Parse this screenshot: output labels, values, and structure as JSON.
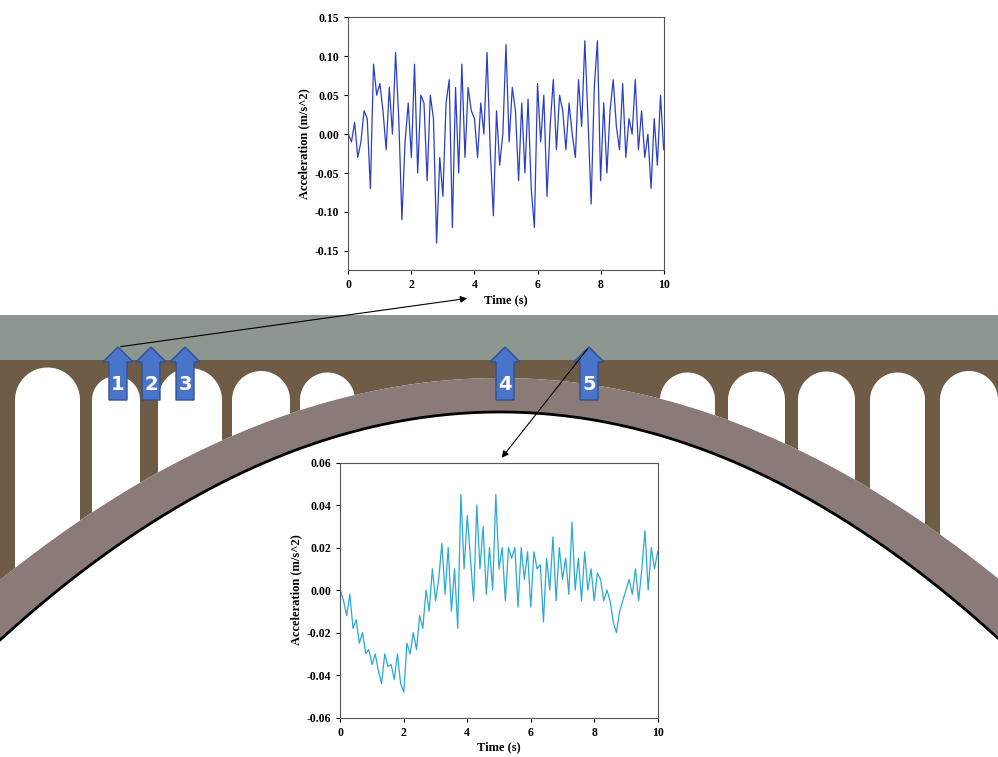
{
  "diagram": {
    "sensors": [
      "1",
      "2",
      "3",
      "4",
      "5"
    ],
    "charts_at_sensors": [
      "1",
      "5"
    ]
  },
  "chart_data": [
    {
      "type": "line",
      "x_label": "Time (s)",
      "y_label": "Acceleration (m/s^2)",
      "color": "#2a3fc6",
      "x": [
        0,
        0.1,
        0.2,
        0.3,
        0.4,
        0.5,
        0.6,
        0.7,
        0.8,
        0.9,
        1,
        1.1,
        1.2,
        1.3,
        1.4,
        1.5,
        1.6,
        1.7,
        1.8,
        1.9,
        2,
        2.1,
        2.2,
        2.3,
        2.4,
        2.5,
        2.6,
        2.7,
        2.8,
        2.9,
        3,
        3.1,
        3.2,
        3.3,
        3.4,
        3.5,
        3.6,
        3.7,
        3.8,
        3.9,
        4,
        4.1,
        4.2,
        4.3,
        4.4,
        4.5,
        4.6,
        4.7,
        4.8,
        4.9,
        5,
        5.1,
        5.2,
        5.3,
        5.4,
        5.5,
        5.6,
        5.7,
        5.8,
        5.9,
        6,
        6.1,
        6.2,
        6.3,
        6.4,
        6.5,
        6.6,
        6.7,
        6.8,
        6.9,
        7,
        7.1,
        7.2,
        7.3,
        7.4,
        7.5,
        7.6,
        7.7,
        7.8,
        7.9,
        8,
        8.1,
        8.2,
        8.3,
        8.4,
        8.5,
        8.6,
        8.7,
        8.8,
        8.9,
        9,
        9.1,
        9.2,
        9.3,
        9.4,
        9.5,
        9.6,
        9.7,
        9.8,
        9.9,
        10
      ],
      "values": [
        0.0,
        -0.01,
        0.015,
        -0.03,
        -0.01,
        0.03,
        0.02,
        -0.07,
        0.09,
        0.05,
        0.065,
        0.03,
        -0.02,
        0.06,
        0.0,
        0.105,
        0.02,
        -0.11,
        -0.01,
        0.04,
        -0.03,
        0.09,
        -0.05,
        0.05,
        0.04,
        -0.06,
        0.05,
        0.02,
        -0.14,
        -0.03,
        -0.08,
        0.04,
        0.07,
        -0.12,
        0.06,
        -0.05,
        0.09,
        -0.03,
        0.06,
        0.03,
        0.02,
        -0.03,
        0.04,
        0.0,
        0.105,
        -0.02,
        -0.105,
        0.03,
        -0.04,
        0.0,
        0.115,
        -0.01,
        0.06,
        0.03,
        -0.06,
        0.04,
        -0.05,
        0.045,
        -0.07,
        -0.12,
        0.065,
        -0.01,
        0.05,
        -0.08,
        0.01,
        0.07,
        -0.02,
        0.05,
        0.03,
        -0.02,
        0.04,
        0.0,
        -0.03,
        0.07,
        0.01,
        0.12,
        0.02,
        -0.09,
        0.06,
        0.12,
        -0.06,
        0.04,
        -0.05,
        0.03,
        0.07,
        0.01,
        -0.02,
        0.065,
        -0.03,
        0.02,
        0.0,
        0.07,
        -0.02,
        0.03,
        -0.03,
        0.0,
        -0.07,
        0.02,
        -0.04,
        0.05,
        -0.02
      ],
      "xlim": [
        0,
        10
      ],
      "xticks": [
        0,
        2,
        4,
        6,
        8,
        10
      ],
      "ylim": [
        -0.175,
        0.15
      ],
      "yticks": [
        -0.15,
        {
          "value": -0.1,
          "label": "-0.10"
        },
        -0.05,
        {
          "value": 0,
          "label": "0.00"
        },
        0.05,
        {
          "value": 0.1,
          "label": "0.10"
        },
        0.15
      ],
      "grid": false
    },
    {
      "type": "line",
      "x_label": "Time (s)",
      "y_label": "Acceleration (m/s^2)",
      "color": "#29a9d6",
      "x": [
        0,
        0.1,
        0.2,
        0.3,
        0.4,
        0.5,
        0.6,
        0.7,
        0.8,
        0.9,
        1,
        1.1,
        1.2,
        1.3,
        1.4,
        1.5,
        1.6,
        1.7,
        1.8,
        1.9,
        2,
        2.1,
        2.2,
        2.3,
        2.4,
        2.5,
        2.6,
        2.7,
        2.8,
        2.9,
        3,
        3.1,
        3.2,
        3.3,
        3.4,
        3.5,
        3.6,
        3.7,
        3.8,
        3.9,
        4,
        4.1,
        4.2,
        4.3,
        4.4,
        4.5,
        4.6,
        4.7,
        4.8,
        4.9,
        5,
        5.1,
        5.2,
        5.3,
        5.4,
        5.5,
        5.6,
        5.7,
        5.8,
        5.9,
        6,
        6.1,
        6.2,
        6.3,
        6.4,
        6.5,
        6.6,
        6.7,
        6.8,
        6.9,
        7,
        7.1,
        7.2,
        7.3,
        7.4,
        7.5,
        7.6,
        7.7,
        7.8,
        7.9,
        8,
        8.1,
        8.2,
        8.3,
        8.4,
        8.5,
        8.6,
        8.7,
        8.8,
        8.9,
        9,
        9.1,
        9.2,
        9.3,
        9.4,
        9.5,
        9.6,
        9.7,
        9.8,
        9.9,
        10
      ],
      "values": [
        0.0,
        -0.005,
        -0.012,
        -0.002,
        -0.018,
        -0.014,
        -0.025,
        -0.02,
        -0.03,
        -0.028,
        -0.035,
        -0.03,
        -0.038,
        -0.044,
        -0.03,
        -0.036,
        -0.035,
        -0.042,
        -0.03,
        -0.044,
        -0.048,
        -0.025,
        -0.03,
        -0.02,
        -0.028,
        -0.012,
        -0.018,
        0.0,
        -0.01,
        0.01,
        -0.005,
        0.005,
        0.022,
        -0.002,
        0.02,
        -0.01,
        0.01,
        -0.018,
        0.045,
        0.01,
        0.035,
        0.015,
        -0.005,
        0.04,
        0.01,
        0.03,
        -0.002,
        0.02,
        0.0,
        0.045,
        0.01,
        0.02,
        -0.005,
        0.02,
        0.015,
        0.02,
        -0.008,
        0.02,
        0.005,
        0.018,
        -0.008,
        0.018,
        0.01,
        0.012,
        -0.015,
        0.015,
        0.0,
        0.025,
        -0.005,
        0.02,
        0.005,
        0.015,
        -0.002,
        0.032,
        0.0,
        0.015,
        -0.005,
        0.018,
        0.0,
        0.01,
        -0.005,
        0.008,
        0.005,
        -0.005,
        0.0,
        -0.005,
        -0.015,
        -0.02,
        -0.01,
        -0.005,
        0.0,
        0.005,
        -0.002,
        0.01,
        -0.005,
        0.01,
        0.028,
        0.0,
        0.02,
        0.01,
        0.018
      ],
      "xlim": [
        0,
        10
      ],
      "xticks": [
        0,
        2,
        4,
        6,
        8,
        10
      ],
      "ylim": [
        -0.06,
        0.06
      ],
      "yticks": [
        -0.06,
        -0.04,
        -0.02,
        {
          "value": 0,
          "label": "0.00"
        },
        0.02,
        0.04,
        0.06
      ],
      "grid": false
    }
  ]
}
